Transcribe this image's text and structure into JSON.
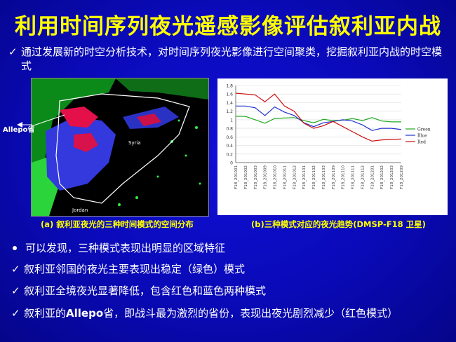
{
  "title": "利用时间序列夜光遥感影像评估叙利亚内战",
  "check_mark": "✓",
  "intro": "通过发展新的时空分析技术，对时间序列夜光影像进行空间聚类，挖掘叙利亚内战的时空模式",
  "map": {
    "callout": "Allepo省",
    "label_syria": "Syria",
    "label_jordan": "Jordan",
    "caption": "(a) 叙利亚夜光的三种时间模式的空间分布"
  },
  "chart_caption": "(b)三种模式对应的夜光趋势(DMSP-F18 卫星)",
  "chart_data": {
    "type": "line",
    "x": [
      "F18_201001",
      "F18_201002",
      "F18_201003",
      "F18_201009",
      "F18_201010",
      "F18_201011",
      "F18_201012",
      "F18_201101",
      "F18_201102",
      "F18_201103",
      "F18_201109",
      "F18_201110",
      "F18_201111",
      "F18_201112",
      "F18_201201",
      "F18_201202",
      "F18_201203",
      "F18_201209"
    ],
    "series": [
      {
        "name": "Green",
        "color": "#22aa22",
        "values": [
          1.08,
          1.08,
          1.0,
          0.92,
          1.03,
          1.04,
          1.05,
          0.98,
          0.93,
          1.01,
          0.98,
          0.99,
          1.03,
          0.98,
          1.05,
          0.97,
          0.95,
          0.95
        ]
      },
      {
        "name": "Blue",
        "color": "#2233cc",
        "values": [
          1.32,
          1.32,
          1.28,
          1.1,
          1.3,
          1.18,
          1.1,
          0.93,
          0.84,
          0.93,
          0.96,
          1.0,
          0.97,
          0.88,
          0.75,
          0.8,
          0.8,
          0.77
        ]
      },
      {
        "name": "Red",
        "color": "#cc1111",
        "values": [
          1.62,
          1.6,
          1.58,
          1.42,
          1.6,
          1.32,
          1.2,
          0.92,
          0.8,
          0.86,
          0.96,
          0.84,
          0.72,
          0.6,
          0.5,
          0.53,
          0.54,
          0.55
        ]
      }
    ],
    "yticks": [
      "1.8",
      "1.6",
      "1.4",
      "1.2",
      "1",
      "0.8",
      "0.6",
      "0.4",
      "0.2",
      "0"
    ],
    "ylim": [
      0,
      1.8
    ],
    "legend_position": "right"
  },
  "bullets": {
    "b1": "可以发现，三种模式表现出明显的区域特征",
    "b2": "叙利亚邻国的夜光主要表现出稳定（绿色）模式",
    "b3": "叙利亚全境夜光显著降低，包含红色和蓝色两种模式",
    "b4_pre": "叙利亚的",
    "b4_bold": "Allepo",
    "b4_post": "省，即战斗最为激烈的省份，表现出夜光剧烈减少（红色模式）"
  }
}
